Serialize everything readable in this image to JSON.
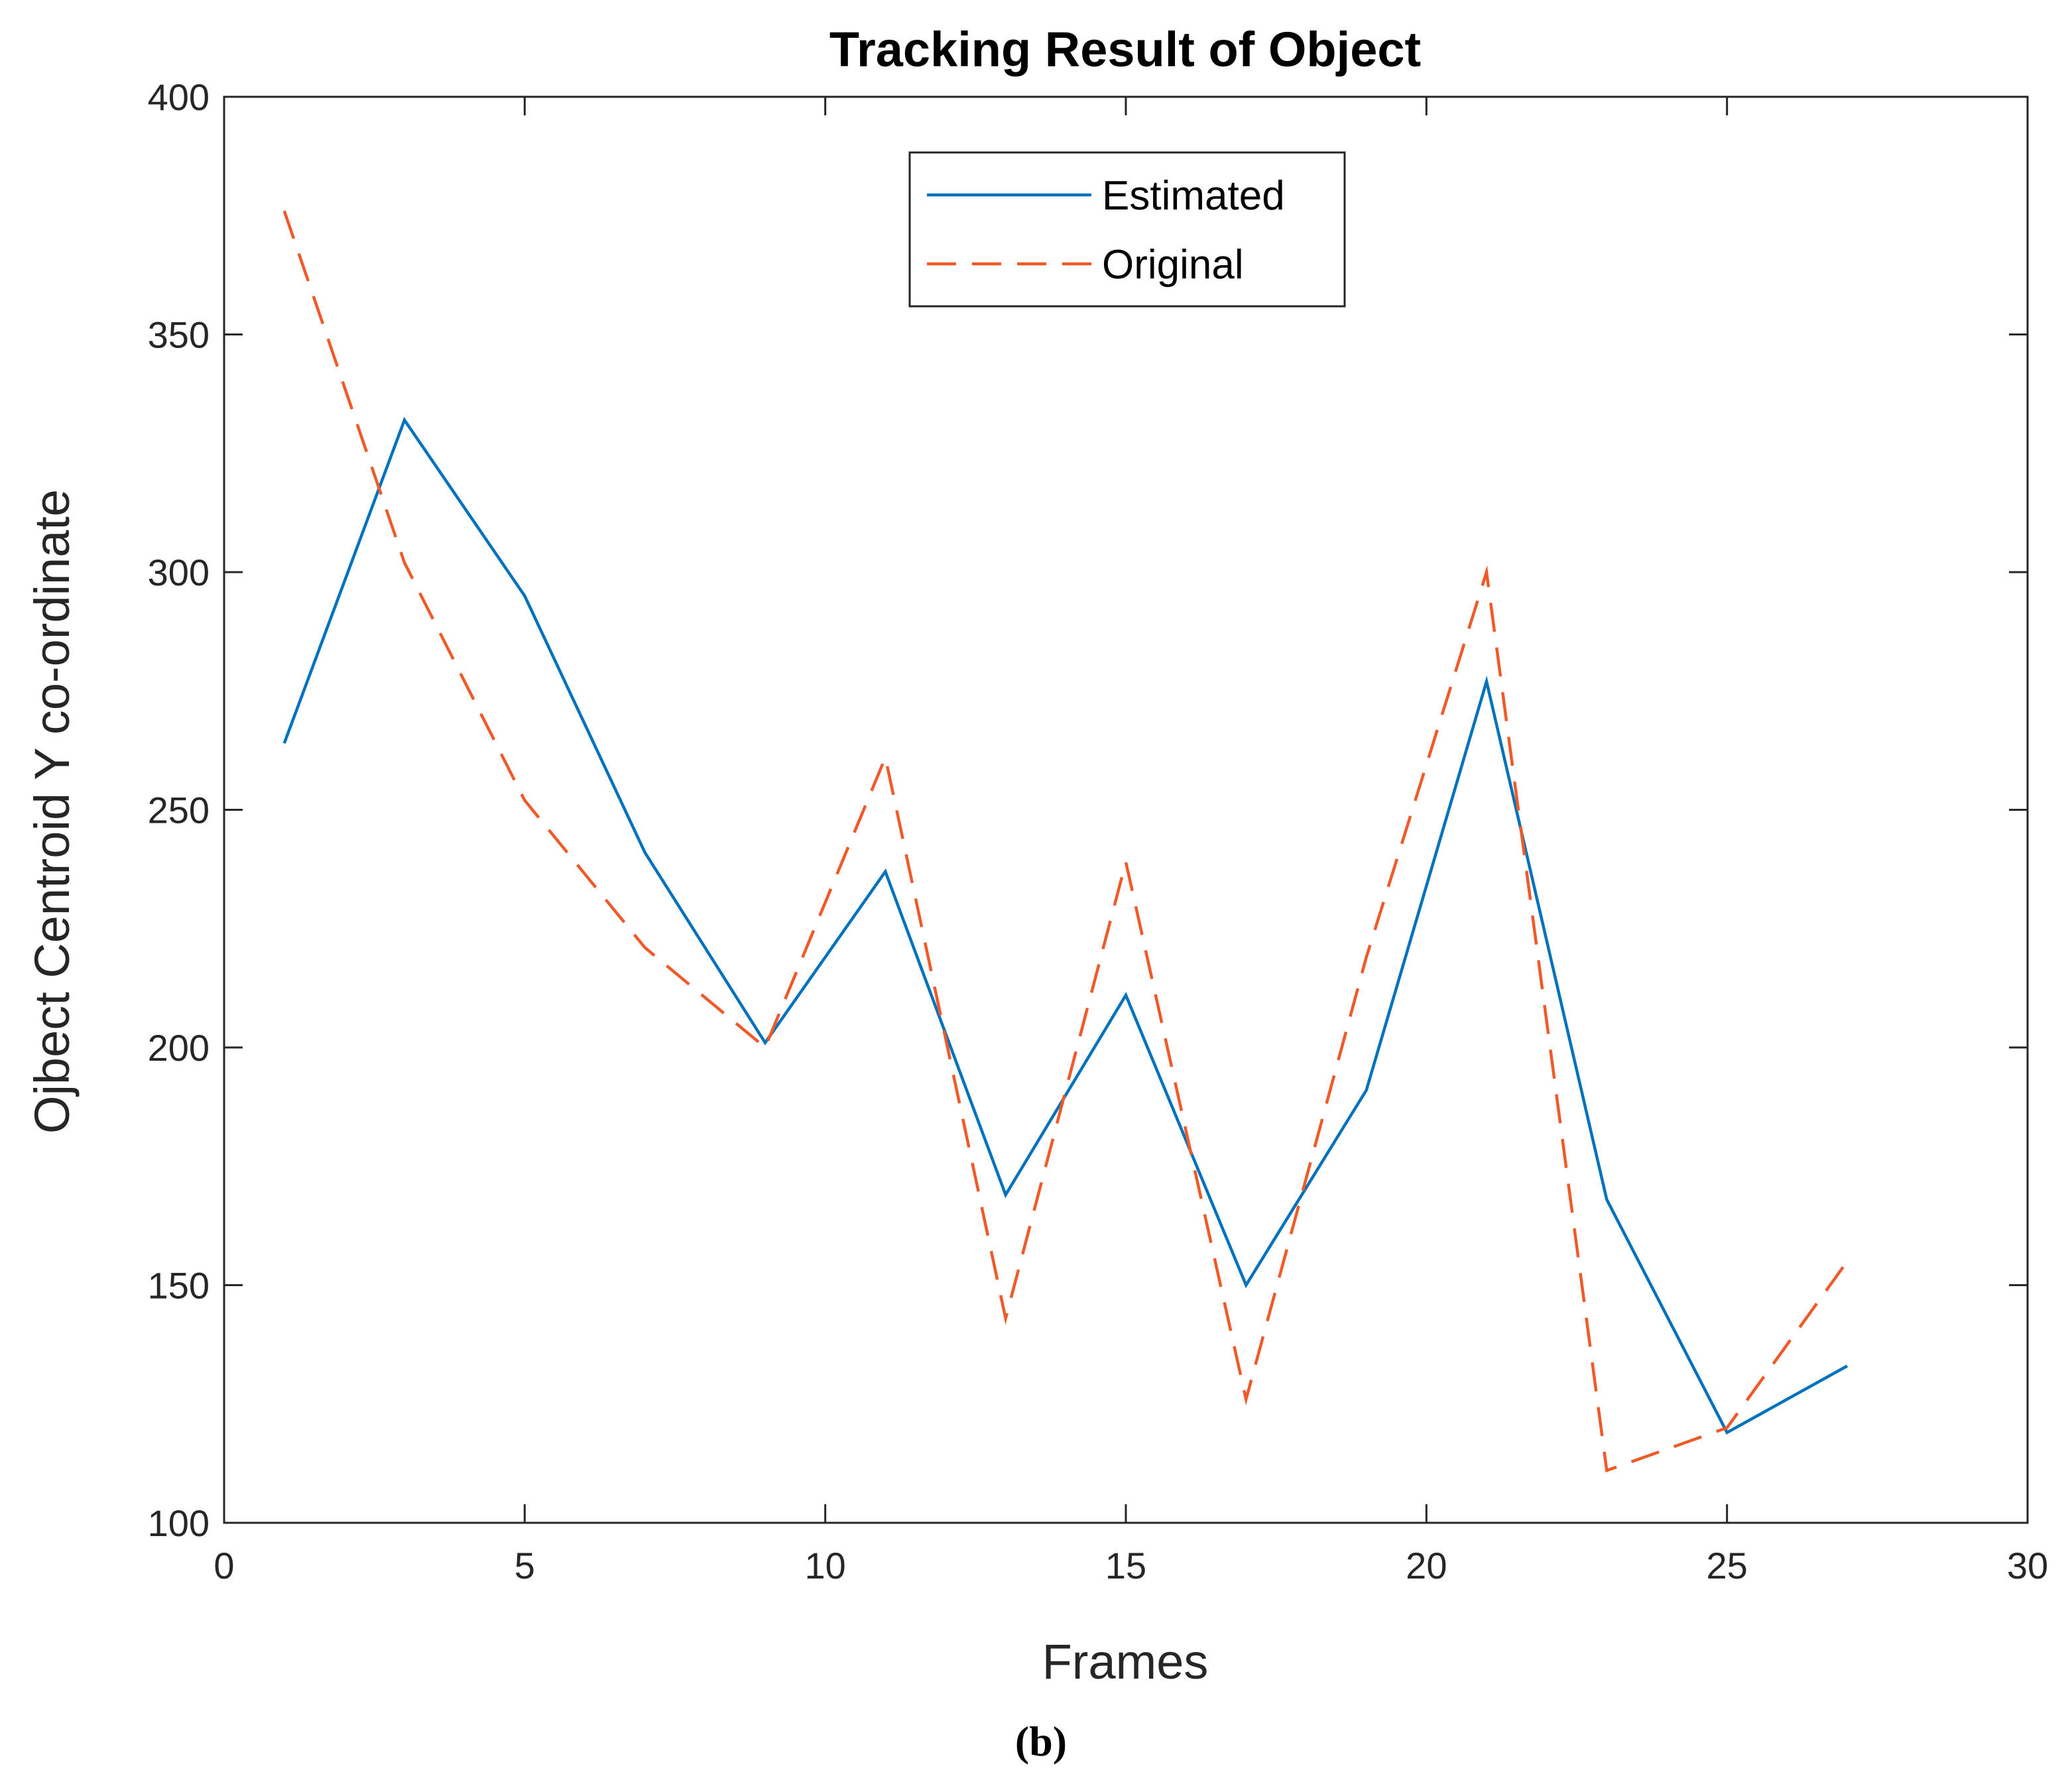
{
  "chart_data": {
    "type": "line",
    "title": "Tracking Result of Object",
    "xlabel": "Frames",
    "ylabel": "Ojbect Centroid Y co-ordinate",
    "xlim": [
      0,
      30
    ],
    "ylim": [
      100,
      400
    ],
    "xticks": [
      0,
      5,
      10,
      15,
      20,
      25,
      30
    ],
    "yticks": [
      100,
      150,
      200,
      250,
      300,
      350,
      400
    ],
    "grid": false,
    "legend_position": "top-center",
    "x": [
      1,
      3,
      5,
      7,
      9,
      11,
      13,
      15,
      17,
      19,
      21,
      23,
      25,
      27
    ],
    "series": [
      {
        "name": "Estimated",
        "style": "solid",
        "color": "#0072BD",
        "values": [
          264,
          332,
          295,
          241,
          201,
          237,
          169,
          211,
          150,
          191,
          277,
          168,
          119,
          133
        ]
      },
      {
        "name": "Original",
        "style": "dashed",
        "color": "#F05A28",
        "values": [
          376,
          302,
          252,
          221,
          200,
          261,
          143,
          239,
          126,
          219,
          300,
          111,
          120,
          155
        ]
      }
    ]
  },
  "caption": "(b)"
}
